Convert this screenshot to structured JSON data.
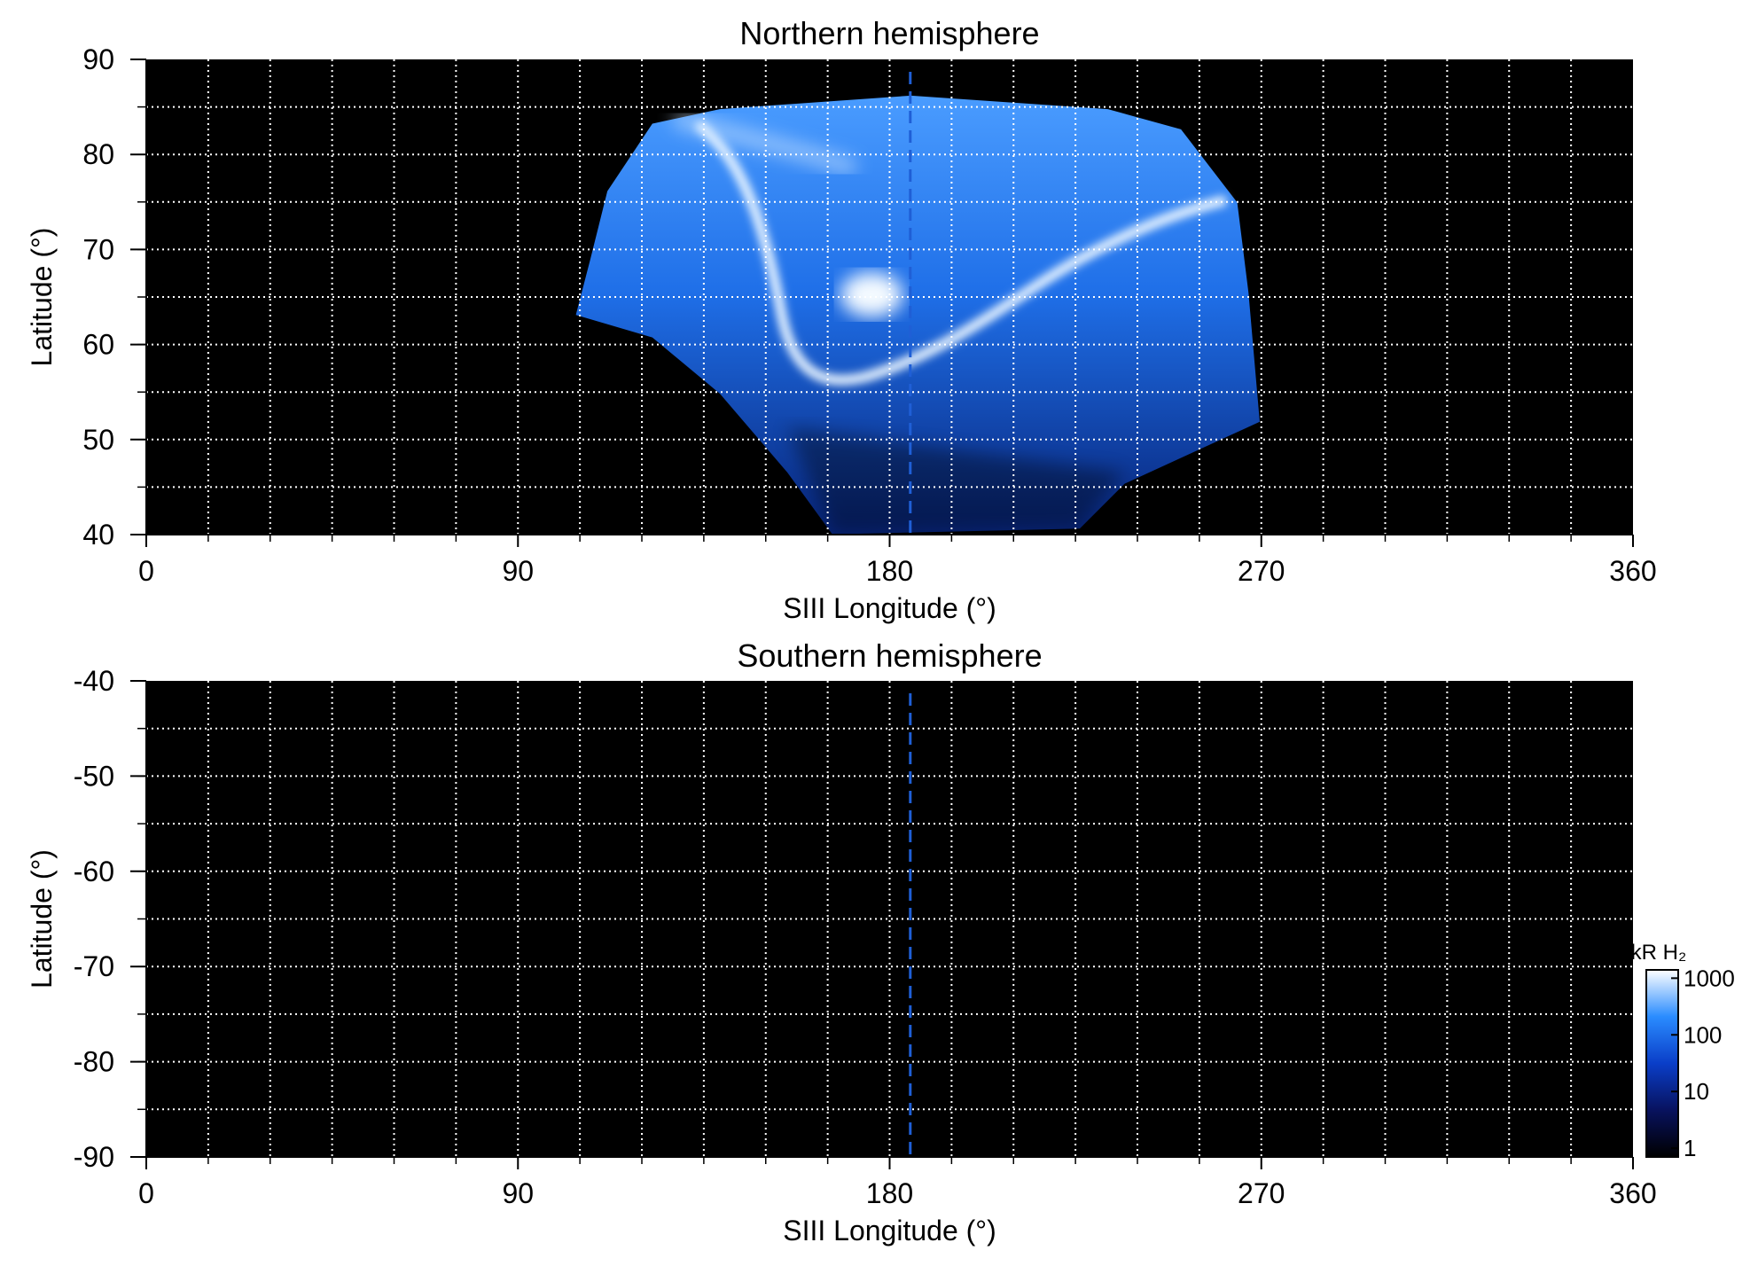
{
  "chart_data": [
    {
      "type": "heatmap",
      "title": "Northern hemisphere",
      "x_label": "SIII Longitude (°)",
      "y_label": "Latitude (°)",
      "xlim": [
        0,
        360
      ],
      "xticks": [
        0,
        90,
        180,
        270,
        360
      ],
      "xgrid": [
        15,
        30,
        45,
        60,
        75,
        90,
        105,
        120,
        135,
        150,
        165,
        180,
        195,
        210,
        225,
        240,
        255,
        270,
        285,
        300,
        315,
        330,
        345
      ],
      "ylim": [
        40,
        90
      ],
      "yticks": [
        40,
        50,
        60,
        70,
        80,
        90
      ],
      "ygrid": [
        45,
        50,
        55,
        60,
        65,
        70,
        75,
        80,
        85
      ],
      "grid": true,
      "reference_line_x": 185,
      "reference_color": "#1f5fd6"
    },
    {
      "type": "heatmap",
      "title": "Southern hemisphere",
      "x_label": "SIII Longitude (°)",
      "y_label": "Latitude (°)",
      "xlim": [
        0,
        360
      ],
      "xticks": [
        0,
        90,
        180,
        270,
        360
      ],
      "xgrid": [
        15,
        30,
        45,
        60,
        75,
        90,
        105,
        120,
        135,
        150,
        165,
        180,
        195,
        210,
        225,
        240,
        255,
        270,
        285,
        300,
        315,
        330,
        345
      ],
      "ylim": [
        -90,
        -40
      ],
      "yticks": [
        -90,
        -80,
        -70,
        -60,
        -50,
        -40
      ],
      "ygrid": [
        -85,
        -80,
        -75,
        -70,
        -65,
        -60,
        -55,
        -50,
        -45
      ],
      "grid": true,
      "reference_line_x": 185,
      "reference_color": "#1f5fd6"
    },
    {
      "type": "colorbar",
      "title": "kR H₂",
      "scale": "log",
      "clim": [
        0.7,
        1400
      ],
      "ticks": [
        1,
        10,
        100,
        1000
      ],
      "colors": [
        "#000000",
        "#08125e",
        "#0a3ec8",
        "#2a8cff",
        "#ffffff"
      ]
    }
  ]
}
